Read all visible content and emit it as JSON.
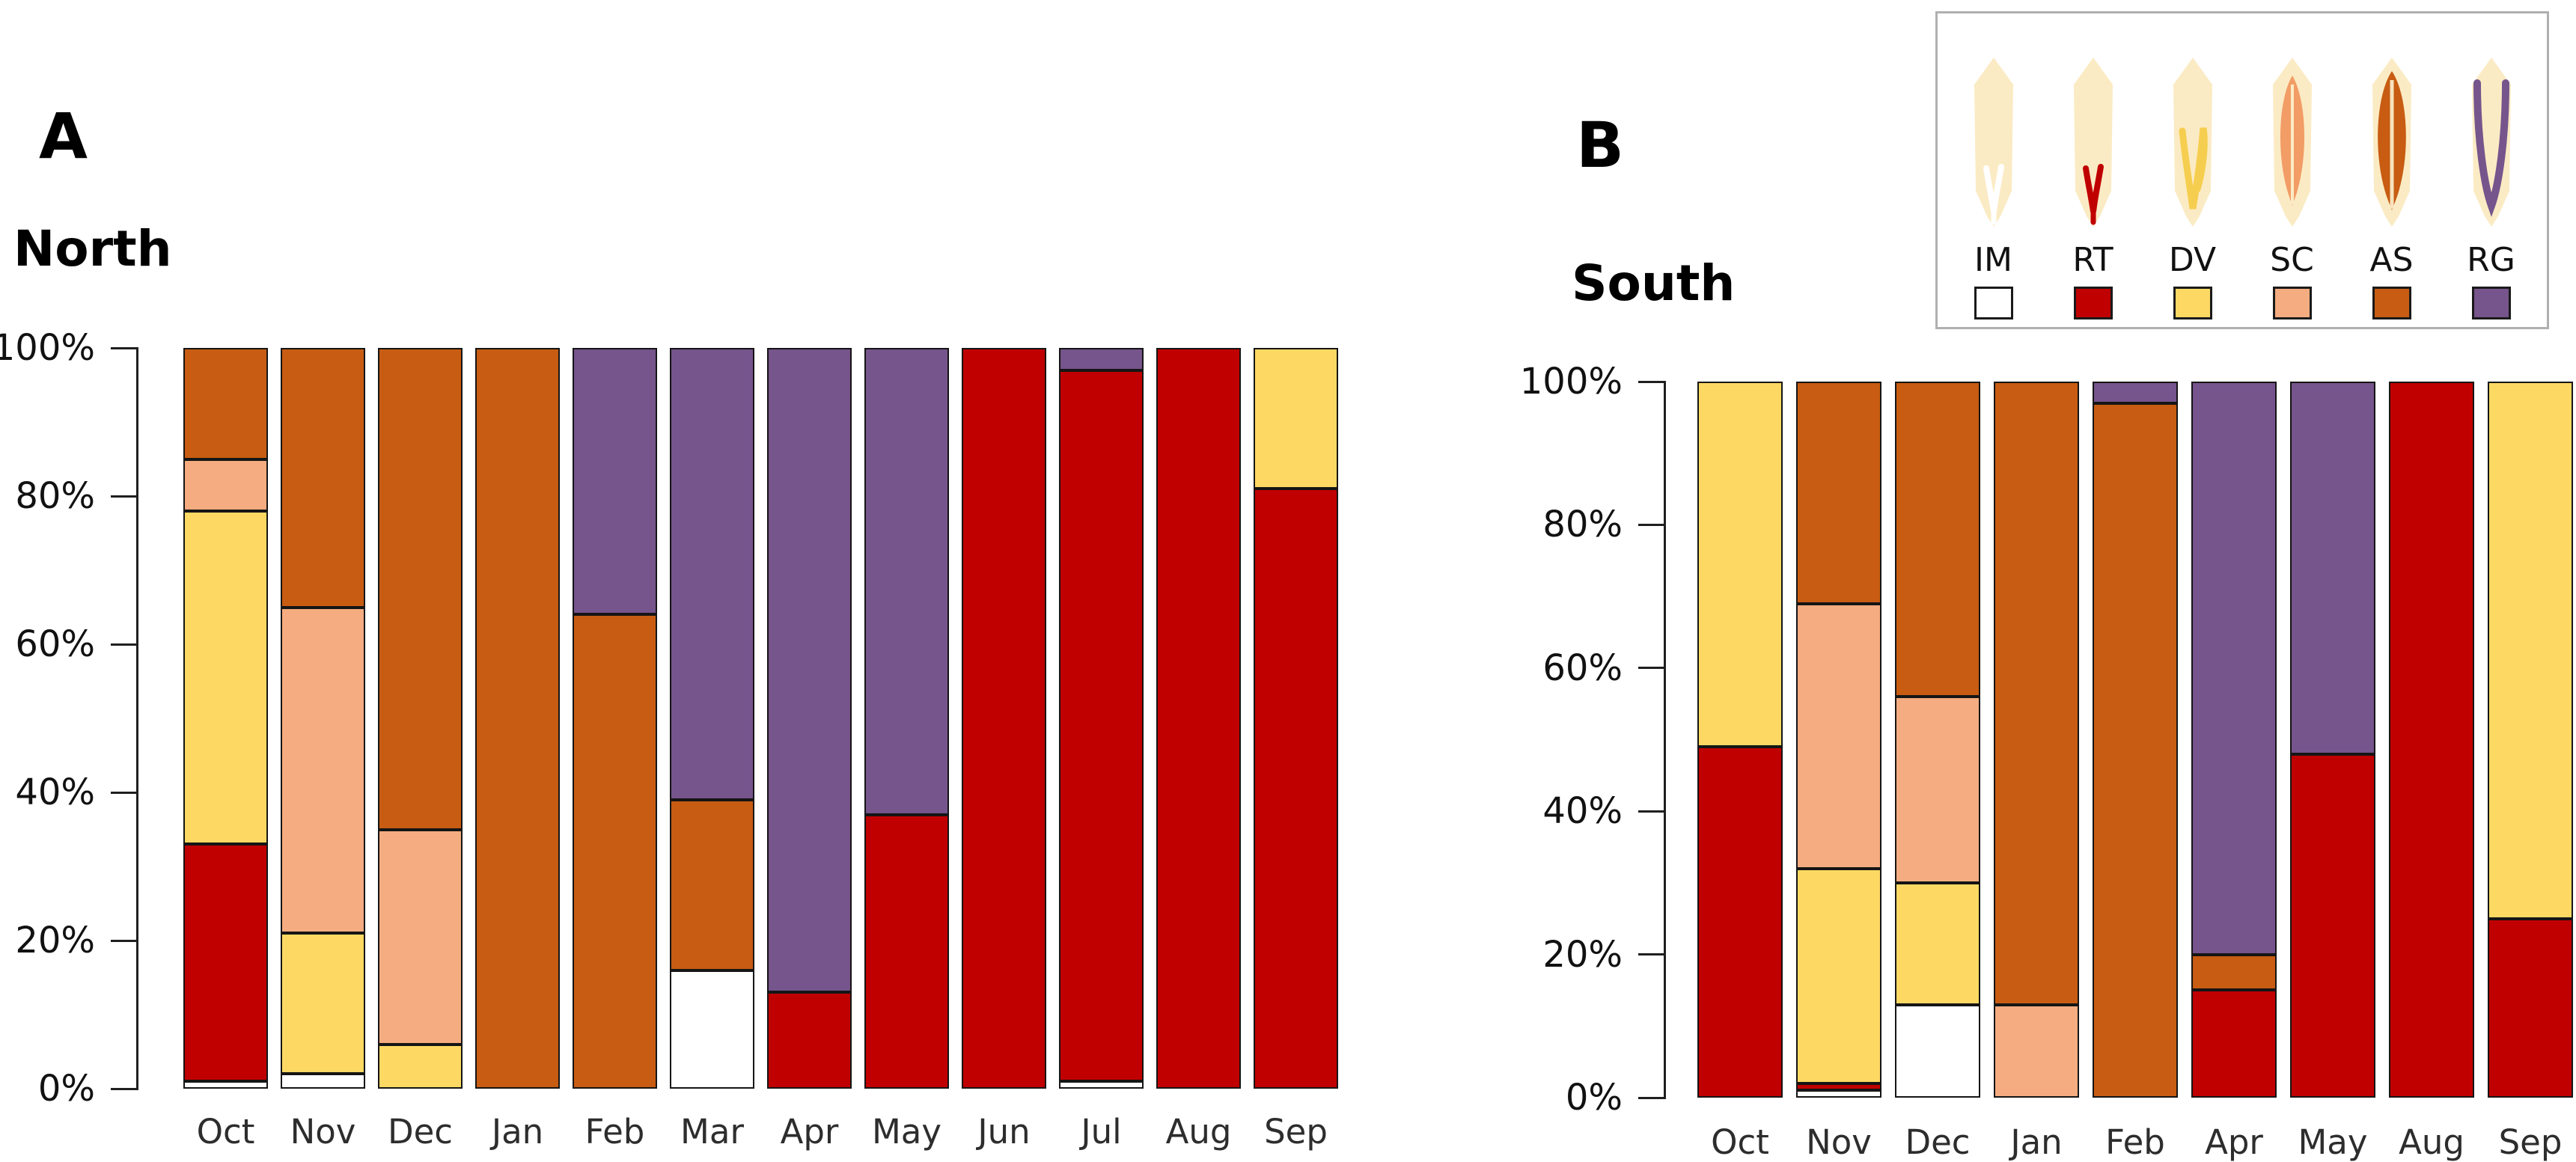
{
  "page": {
    "background": "#ffffff"
  },
  "panels": [
    {
      "panel_label": "A",
      "title": "North"
    },
    {
      "panel_label": "B",
      "title": "South"
    }
  ],
  "legend": {
    "border_color": "#b0b0b0",
    "sheath_color": "#FBEBC4",
    "items": [
      {
        "code": "IM",
        "color": "#FFFFFF"
      },
      {
        "code": "RT",
        "color": "#C00000"
      },
      {
        "code": "DV",
        "color": "#FDD964"
      },
      {
        "code": "SC",
        "color": "#F4AC80"
      },
      {
        "code": "AS",
        "color": "#C75C12"
      },
      {
        "code": "RG",
        "color": "#76548C"
      }
    ]
  },
  "chart_data": [
    {
      "type": "bar",
      "stacked": true,
      "panel": "A",
      "title": "North",
      "xlabel": "",
      "ylabel": "",
      "ylim": [
        0,
        100
      ],
      "grid": false,
      "y_ticks": [
        "100%",
        "80%",
        "60%",
        "40%",
        "20%",
        "0%"
      ],
      "categories": [
        "Oct",
        "Nov",
        "Dec",
        "Jan",
        "Feb",
        "Mar",
        "Apr",
        "May",
        "Jun",
        "Jul",
        "Aug",
        "Sep"
      ],
      "series": [
        {
          "name": "IM",
          "color": "#FFFFFF",
          "values": [
            1,
            2,
            0,
            0,
            0,
            16,
            0,
            0,
            0,
            1,
            0,
            0
          ]
        },
        {
          "name": "RT",
          "color": "#C00000",
          "values": [
            32,
            0,
            0,
            0,
            0,
            0,
            13,
            37,
            100,
            96,
            100,
            81
          ]
        },
        {
          "name": "DV",
          "color": "#FDD964",
          "values": [
            45,
            19,
            6,
            0,
            0,
            0,
            0,
            0,
            0,
            0,
            0,
            19
          ]
        },
        {
          "name": "SC",
          "color": "#F4AC80",
          "values": [
            7,
            44,
            29,
            0,
            0,
            0,
            0,
            0,
            0,
            0,
            0,
            0
          ]
        },
        {
          "name": "AS",
          "color": "#C75C12",
          "values": [
            15,
            35,
            65,
            100,
            64,
            23,
            0,
            0,
            0,
            0,
            0,
            0
          ]
        },
        {
          "name": "RG",
          "color": "#76548C",
          "values": [
            0,
            0,
            0,
            0,
            36,
            61,
            87,
            63,
            0,
            3,
            0,
            0
          ]
        }
      ]
    },
    {
      "type": "bar",
      "stacked": true,
      "panel": "B",
      "title": "South",
      "xlabel": "",
      "ylabel": "",
      "ylim": [
        0,
        100
      ],
      "grid": false,
      "y_ticks": [
        "100%",
        "80%",
        "60%",
        "40%",
        "20%",
        "0%"
      ],
      "categories": [
        "Oct",
        "Nov",
        "Dec",
        "Jan",
        "Feb",
        "Apr",
        "May",
        "Aug",
        "Sep"
      ],
      "series": [
        {
          "name": "IM",
          "color": "#FFFFFF",
          "values": [
            0,
            1,
            13,
            0,
            0,
            0,
            0,
            0,
            0
          ]
        },
        {
          "name": "RT",
          "color": "#C00000",
          "values": [
            49,
            1,
            0,
            0,
            0,
            15,
            48,
            100,
            25
          ]
        },
        {
          "name": "DV",
          "color": "#FDD964",
          "values": [
            51,
            30,
            17,
            0,
            0,
            0,
            0,
            0,
            75
          ]
        },
        {
          "name": "SC",
          "color": "#F4AC80",
          "values": [
            0,
            37,
            26,
            13,
            0,
            0,
            0,
            0,
            0
          ]
        },
        {
          "name": "AS",
          "color": "#C75C12",
          "values": [
            0,
            31,
            44,
            87,
            97,
            5,
            0,
            0,
            0
          ]
        },
        {
          "name": "RG",
          "color": "#76548C",
          "values": [
            0,
            0,
            0,
            0,
            3,
            80,
            52,
            0,
            0
          ]
        }
      ]
    }
  ]
}
